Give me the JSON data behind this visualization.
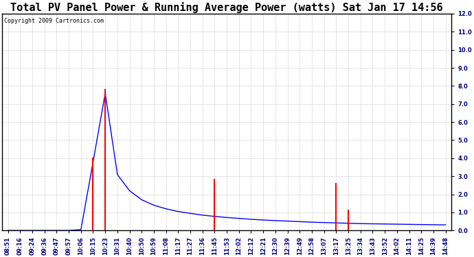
{
  "title": "Total PV Panel Power & Running Average Power (watts) Sat Jan 17 14:56",
  "copyright": "Copyright 2009 Cartronics.com",
  "ylim": [
    0.0,
    12.0
  ],
  "yticks": [
    0.0,
    1.0,
    2.0,
    3.0,
    4.0,
    5.0,
    6.0,
    7.0,
    8.0,
    9.0,
    10.0,
    11.0,
    12.0
  ],
  "x_labels": [
    "08:51",
    "09:16",
    "09:24",
    "09:36",
    "09:47",
    "09:57",
    "10:06",
    "10:15",
    "10:23",
    "10:31",
    "10:40",
    "10:50",
    "10:59",
    "11:08",
    "11:17",
    "11:27",
    "11:36",
    "11:45",
    "11:53",
    "12:02",
    "12:12",
    "12:21",
    "12:30",
    "12:39",
    "12:49",
    "12:58",
    "13:07",
    "13:17",
    "13:25",
    "13:34",
    "13:43",
    "13:52",
    "14:02",
    "14:11",
    "14:25",
    "14:39",
    "14:48"
  ],
  "background_color": "#ffffff",
  "line_color_blue": "#0000ff",
  "line_color_red": "#ff0000",
  "grid_color": "#cccccc",
  "title_fontsize": 11,
  "copyright_fontsize": 6,
  "tick_fontsize": 6,
  "red_spike_indices": [
    7,
    8,
    17,
    27,
    28
  ],
  "red_spike_heights": [
    4.0,
    7.8,
    2.8,
    2.6,
    1.1
  ],
  "blue_data": [
    0,
    0,
    0,
    0,
    0,
    0,
    0.05,
    3.8,
    7.6,
    3.1,
    2.2,
    1.7,
    1.4,
    1.2,
    1.05,
    0.95,
    0.85,
    0.78,
    0.72,
    0.67,
    0.62,
    0.58,
    0.55,
    0.52,
    0.49,
    0.46,
    0.44,
    0.42,
    0.4,
    0.38,
    0.37,
    0.36,
    0.35,
    0.34,
    0.33,
    0.32,
    0.31
  ]
}
